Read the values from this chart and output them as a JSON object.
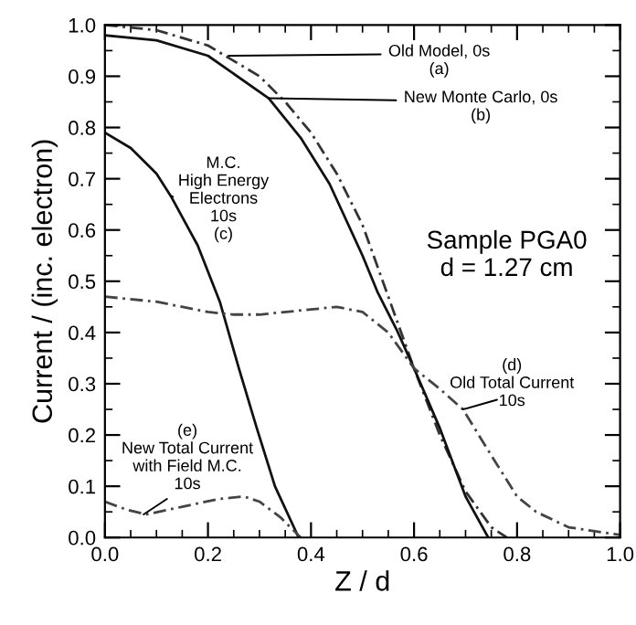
{
  "chart_data": {
    "type": "line",
    "xlabel": "Z / d",
    "ylabel": "Current / (inc. electron)",
    "xlim": [
      0.0,
      1.0
    ],
    "ylim": [
      0.0,
      1.0
    ],
    "xticks": [
      {
        "value": 0.0,
        "label": "0.0"
      },
      {
        "value": 0.2,
        "label": "0.2"
      },
      {
        "value": 0.4,
        "label": "0.4"
      },
      {
        "value": 0.6,
        "label": "0.6"
      },
      {
        "value": 0.8,
        "label": "0.8"
      },
      {
        "value": 1.0,
        "label": "1.0"
      }
    ],
    "yticks": [
      {
        "value": 0.0,
        "label": "0.0"
      },
      {
        "value": 0.1,
        "label": "0.1"
      },
      {
        "value": 0.2,
        "label": "0.2"
      },
      {
        "value": 0.3,
        "label": "0.3"
      },
      {
        "value": 0.4,
        "label": "0.4"
      },
      {
        "value": 0.5,
        "label": "0.5"
      },
      {
        "value": 0.6,
        "label": "0.6"
      },
      {
        "value": 0.7,
        "label": "0.7"
      },
      {
        "value": 0.8,
        "label": "0.8"
      },
      {
        "value": 0.9,
        "label": "0.9"
      },
      {
        "value": 1.0,
        "label": "1.0"
      }
    ],
    "grid": false,
    "marker": "none",
    "series": [
      {
        "color": "#333333",
        "line_style": "dashed",
        "x": [
          0.0,
          0.1,
          0.2,
          0.3,
          0.35,
          0.4,
          0.45,
          0.5,
          0.55,
          0.6,
          0.65,
          0.7,
          0.75,
          0.78
        ],
        "values": [
          1.0,
          0.99,
          0.96,
          0.9,
          0.85,
          0.79,
          0.71,
          0.61,
          0.47,
          0.33,
          0.2,
          0.09,
          0.02,
          0.0
        ]
      },
      {
        "color": "#111111",
        "line_style": "solid",
        "x": [
          0.0,
          0.1,
          0.2,
          0.318,
          0.38,
          0.436,
          0.5,
          0.53,
          0.566,
          0.6,
          0.649,
          0.7,
          0.744
        ],
        "values": [
          0.98,
          0.97,
          0.94,
          0.857,
          0.78,
          0.69,
          0.55,
          0.477,
          0.406,
          0.33,
          0.216,
          0.08,
          0.0
        ]
      },
      {
        "color": "#111111",
        "line_style": "solid",
        "x": [
          0.0,
          0.05,
          0.1,
          0.128,
          0.18,
          0.223,
          0.26,
          0.294,
          0.33,
          0.376
        ],
        "values": [
          0.79,
          0.76,
          0.71,
          0.666,
          0.57,
          0.46,
          0.33,
          0.216,
          0.1,
          0.0
        ]
      },
      {
        "color": "#444444",
        "line_style": "dashed",
        "x": [
          0.0,
          0.1,
          0.2,
          0.25,
          0.3,
          0.4,
          0.45,
          0.5,
          0.55,
          0.6,
          0.65,
          0.695,
          0.75,
          0.8,
          0.837,
          0.9,
          1.0
        ],
        "values": [
          0.47,
          0.46,
          0.44,
          0.435,
          0.435,
          0.445,
          0.45,
          0.44,
          0.4,
          0.33,
          0.29,
          0.25,
          0.16,
          0.08,
          0.05,
          0.02,
          0.005
        ]
      },
      {
        "color": "#444444",
        "line_style": "dashed",
        "x": [
          0.0,
          0.04,
          0.08,
          0.15,
          0.22,
          0.27,
          0.3,
          0.34,
          0.38
        ],
        "values": [
          0.07,
          0.055,
          0.045,
          0.06,
          0.075,
          0.08,
          0.07,
          0.04,
          0.0
        ]
      }
    ],
    "annotations": [
      {
        "text": "Old Model, 0s\n(a)",
        "x": 0.24,
        "y": 0.94
      },
      {
        "text": "New Monte Carlo, 0s\n(b)",
        "x": 0.318,
        "y": 0.857
      },
      {
        "text": "M.C.\nHigh Energy\nElectrons\n10s\n(c)",
        "x": 0.128,
        "y": 0.666
      },
      {
        "text": "(d)\nOld Total Current\n10s",
        "x": 0.695,
        "y": 0.25
      },
      {
        "text": "(e)\nNew Total Current\nwith Field M.C.\n10s",
        "x": 0.075,
        "y": 0.045
      },
      "Sample PGA0\nd = 1.27 cm"
    ]
  }
}
